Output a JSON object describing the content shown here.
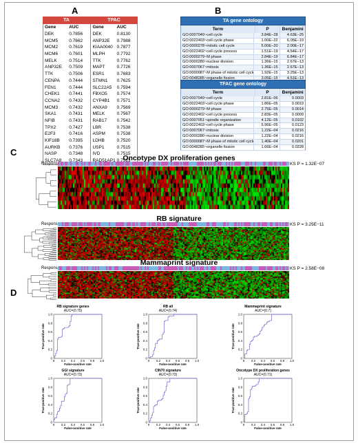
{
  "panels": {
    "a": "A",
    "b": "B",
    "c": "C",
    "d": "D"
  },
  "panel_a": {
    "col1": "TA",
    "col2": "TPAC",
    "gene": "Gene",
    "auc": "AUC",
    "ta": [
      [
        "DEK",
        "0.7856"
      ],
      [
        "MCM5",
        "0.7662"
      ],
      [
        "MCM2",
        "0.7619"
      ],
      [
        "MCM6",
        "0.7601"
      ],
      [
        "MELK",
        "0.7514"
      ],
      [
        "ANP32E",
        "0.7509"
      ],
      [
        "TTK",
        "0.7506"
      ],
      [
        "CENPA",
        "0.7444"
      ],
      [
        "FEN1",
        "0.7444"
      ],
      [
        "CHEK1",
        "0.7441"
      ],
      [
        "CCNA2",
        "0.7432"
      ],
      [
        "MCM3",
        "0.7432"
      ],
      [
        "SKA1",
        "0.7431"
      ],
      [
        "NFIB",
        "0.7431"
      ],
      [
        "TPX2",
        "0.7427"
      ],
      [
        "E2F3",
        "0.7416"
      ],
      [
        "KIF18B",
        "0.7395"
      ],
      [
        "AURKB",
        "0.7376"
      ],
      [
        "NASP",
        "0.7348"
      ],
      [
        "SLC7A8",
        "0.7343"
      ]
    ],
    "tpac": [
      [
        "DEK",
        "0.8130"
      ],
      [
        "ANP32E",
        "0.7988"
      ],
      [
        "KIAA0040",
        "0.7877"
      ],
      [
        "MLPH",
        "0.7792"
      ],
      [
        "TTK",
        "0.7762"
      ],
      [
        "MAPT",
        "0.7726"
      ],
      [
        "ESR1",
        "0.7683"
      ],
      [
        "STMN1",
        "0.7625"
      ],
      [
        "SLC22A5",
        "0.7594"
      ],
      [
        "FBXO5",
        "0.7574"
      ],
      [
        "CYP4B1",
        "0.7571"
      ],
      [
        "ANXA9",
        "0.7569"
      ],
      [
        "MELK",
        "0.7567"
      ],
      [
        "RAB17",
        "0.7542"
      ],
      [
        "LBR",
        "0.7538"
      ],
      [
        "ASPM",
        "0.7538"
      ],
      [
        "LDHB",
        "0.7520"
      ],
      [
        "USP1",
        "0.7515"
      ],
      [
        "IVD",
        "0.7515"
      ],
      [
        "RAD51AP1",
        "0.7513"
      ]
    ]
  },
  "panel_b": {
    "ta_title": "TA gene ontology",
    "tpac_title": "TFAC gene ontology",
    "col_term": "Term",
    "col_p": "P",
    "col_benj": "Benjamini",
    "ta_rows": [
      [
        "GO:0007049~cell cycle",
        "3.84E−28",
        "4.63E−25"
      ],
      [
        "GO:0022403~cell cycle phase",
        "1.00E−22",
        "6.05E−19"
      ],
      [
        "GO:0000278~mitotic cell cycle",
        "5.00E−20",
        "2.00E−17"
      ],
      [
        "GO:0022402~cell cycle process",
        "1.51E−19",
        "4.54E−17"
      ],
      [
        "GO:0000279~M phase",
        "2.84E−19",
        "6.84E−17"
      ],
      [
        "GO:0000280~nuclear division",
        "1.36E−15",
        "2.67E−13"
      ],
      [
        "GO:0007067~mitosis",
        "1.36E−15",
        "2.67E−13"
      ],
      [
        "GO:0000087~M phase of mitotic cell cycle",
        "1.92E−15",
        "3.25E−13"
      ],
      [
        "GO:0048285~organelle fission",
        "3.05E−15",
        "4.51E−13"
      ],
      [
        "GO:0006259~DNA metabolic process",
        "1.17E−12",
        "1.57E−10"
      ]
    ],
    "tpac_rows": [
      [
        "GO:0007049~cell cycle",
        "2.81E−06",
        "0.0003"
      ],
      [
        "GO:0022403~cell cycle phase",
        "1.86E−05",
        "0.0019"
      ],
      [
        "GO:0000279~M phase",
        "2.75E−05",
        "0.0014"
      ],
      [
        "GO:0022402~cell cycle process",
        "2.83E−05",
        "0.0009"
      ],
      [
        "GO:0007051~spindle organization",
        "4.12E−05",
        "0.0102"
      ],
      [
        "GO:0022403~cell cycle phase",
        "5.96E−05",
        "0.0123"
      ],
      [
        "GO:0007067~mitosis",
        "1.22E−04",
        "0.0216"
      ],
      [
        "GO:0000280~nuclear division",
        "1.22E−04",
        "0.0216"
      ],
      [
        "GO:0000087~M phase of mitotic cell cycle",
        "1.40E−04",
        "0.0201"
      ],
      [
        "GO:0048285~organelle fission",
        "1.66E−04",
        "0.0228"
      ]
    ]
  },
  "panel_c": {
    "response": "Response",
    "heatmaps": [
      {
        "title": "Oncotype DX proliferation genes",
        "ks": "KS P = 1.32E−07"
      },
      {
        "title": "RB signature",
        "ks": "KS P = 3.25E−11"
      },
      {
        "title": "Mammaprint signature",
        "ks": "KS P = 2.58E−08"
      }
    ]
  },
  "panel_d": {
    "xlabel": "False-positive rate",
    "ylabel": "True-positive rate",
    "ticks": [
      "0",
      "0.2",
      "0.4",
      "0.6",
      "0.8",
      "1.0"
    ],
    "plots": [
      {
        "title": "RB signature genes",
        "auc": "AUC=(0.75)"
      },
      {
        "title": "RB all",
        "auc": "AUC=(0.74)"
      },
      {
        "title": "Mammaprint signature",
        "auc": "AUC=(0.7)"
      },
      {
        "title": "GGI signature",
        "auc": "AUC=(0.73)"
      },
      {
        "title": "CIN70 signature",
        "auc": "AUC=(0.73)"
      },
      {
        "title": "Oncotype DX proliferation genes",
        "auc": "AUC=(0.71)"
      }
    ]
  },
  "colors": {
    "red_header": "#d4473f",
    "blue_header": "#2f6fb3",
    "response_a": "#c85ab8",
    "response_b": "#7db6e0",
    "roc_line": "#6a6ad0"
  }
}
